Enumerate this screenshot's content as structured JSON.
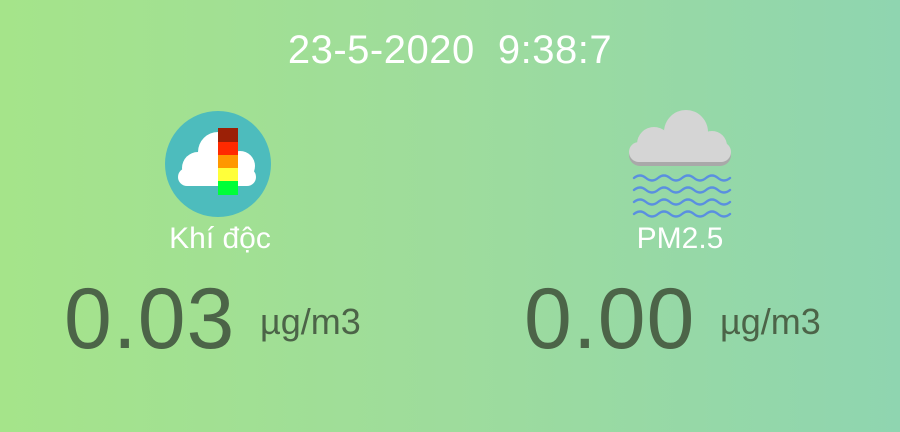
{
  "header": {
    "datetime": "23-5-2020  9:38:7"
  },
  "sensors": [
    {
      "label": "Khí độc",
      "value": "0.03",
      "unit": "µg/m3",
      "icon": "toxic-gas-level-icon"
    },
    {
      "label": "PM2.5",
      "value": "0.00",
      "unit": "µg/m3",
      "icon": "cloud-wind-icon"
    }
  ],
  "colors": {
    "background_left": "#a5e48a",
    "background_right": "#8fd5b0",
    "text_light": "#ffffff",
    "value_text": "#4c6448",
    "icon_circle": "#4dbcbd",
    "level_bar": [
      "#9b2006",
      "#ff2a00",
      "#ff9800",
      "#ffff3a",
      "#00ff37"
    ]
  }
}
